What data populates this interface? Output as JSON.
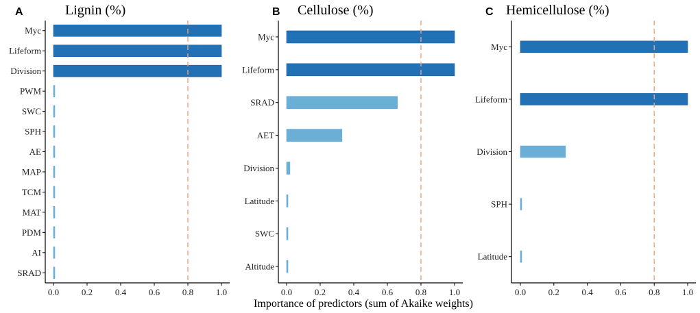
{
  "colors": {
    "high": "#2271b5",
    "low": "#6baed6",
    "threshold": "#f0a07a"
  },
  "x_axis_title": "Importance of predictors (sum of Akaike weights)",
  "chart_data": [
    {
      "type": "bar",
      "orientation": "horizontal",
      "panel": "A",
      "title": "Lignin (%)",
      "categories": [
        "Myc",
        "Lifeform",
        "Division",
        "PWM",
        "SWC",
        "SPH",
        "AE",
        "MAP",
        "TCM",
        "MAT",
        "PDM",
        "AI",
        "SRAD"
      ],
      "values": [
        1.0,
        1.0,
        1.0,
        0.004,
        0.004,
        0.004,
        0.004,
        0.004,
        0.004,
        0.004,
        0.004,
        0.004,
        0.004
      ],
      "xlim": [
        0,
        1
      ],
      "xticks": [
        "0.0",
        "0.2",
        "0.4",
        "0.6",
        "0.8",
        "1.0"
      ],
      "threshold": 0.8
    },
    {
      "type": "bar",
      "orientation": "horizontal",
      "panel": "B",
      "title": "Cellulose (%)",
      "categories": [
        "Myc",
        "Lifeform",
        "SRAD",
        "AET",
        "Division",
        "Latitude",
        "SWC",
        "Altitude"
      ],
      "values": [
        1.0,
        1.0,
        0.66,
        0.33,
        0.02,
        0.005,
        0.005,
        0.005
      ],
      "xlim": [
        0,
        1
      ],
      "xticks": [
        "0.0",
        "0.2",
        "0.4",
        "0.6",
        "0.8",
        "1.0"
      ],
      "threshold": 0.8
    },
    {
      "type": "bar",
      "orientation": "horizontal",
      "panel": "C",
      "title": "Hemicellulose (%)",
      "categories": [
        "Myc",
        "Lifeform",
        "Division",
        "SPH",
        "Latitude"
      ],
      "values": [
        1.0,
        1.0,
        0.27,
        0.005,
        0.005
      ],
      "xlim": [
        0,
        1
      ],
      "xticks": [
        "0.0",
        "0.2",
        "0.4",
        "0.6",
        "0.8",
        "1.0"
      ],
      "threshold": 0.8
    }
  ]
}
